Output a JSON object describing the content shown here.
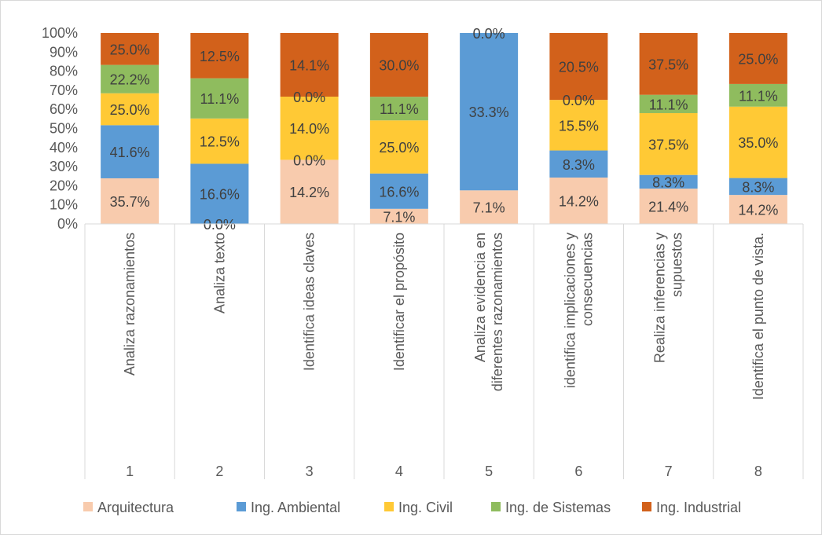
{
  "chart_data": {
    "type": "bar",
    "stacked": "percent",
    "categories": [
      {
        "number": "1",
        "lines": [
          "Analiza razonamientos"
        ]
      },
      {
        "number": "2",
        "lines": [
          "Analiza texto"
        ]
      },
      {
        "number": "3",
        "lines": [
          "Identifica ideas claves"
        ]
      },
      {
        "number": "4",
        "lines": [
          "Identificar el propósito"
        ]
      },
      {
        "number": "5",
        "lines": [
          "Analiza evidencia en",
          "diferentes razonamientos"
        ]
      },
      {
        "number": "6",
        "lines": [
          "identifica implicaciones y",
          "consecuencias"
        ]
      },
      {
        "number": "7",
        "lines": [
          "Realiza inferencias y",
          "supuestos"
        ]
      },
      {
        "number": "8",
        "lines": [
          "Identifica el punto de vista."
        ]
      }
    ],
    "series": [
      {
        "name": "Arquitectura",
        "color": "#f8cbad",
        "values": [
          35.7,
          0.0,
          14.2,
          7.1,
          7.1,
          14.2,
          21.4,
          14.2
        ],
        "labels": [
          "35.7%",
          "0.0%",
          "14.2%",
          "7.1%",
          "7.1%",
          "14.2%",
          "21.4%",
          "14.2%"
        ]
      },
      {
        "name": "Ing. Ambiental",
        "color": "#5b9bd5",
        "values": [
          41.6,
          16.6,
          0.0,
          16.6,
          33.3,
          8.3,
          8.3,
          8.3
        ],
        "labels": [
          "41.6%",
          "16.6%",
          "0.0%",
          "16.6%",
          "33.3%",
          "8.3%",
          "8.3%",
          "8.3%"
        ]
      },
      {
        "name": "Ing. Civil",
        "color": "#ffc935",
        "values": [
          25.0,
          12.5,
          14.0,
          25.0,
          0.0,
          15.5,
          37.5,
          35.0
        ],
        "labels": [
          "25.0%",
          "12.5%",
          "14.0%",
          "25.0%",
          "",
          "15.5%",
          "37.5%",
          "35.0%"
        ]
      },
      {
        "name": "Ing. de Sistemas",
        "color": "#8fbc5e",
        "values": [
          22.2,
          11.1,
          0.0,
          11.1,
          0.0,
          0.0,
          11.1,
          11.1
        ],
        "labels": [
          "22.2%",
          "11.1%",
          "0.0%",
          "11.1%",
          "",
          "0.0%",
          "11.1%",
          "11.1%"
        ]
      },
      {
        "name": "Ing. Industrial",
        "color": "#d2611b",
        "values": [
          25.0,
          12.5,
          14.1,
          30.0,
          0.0,
          20.5,
          37.5,
          25.0
        ],
        "labels": [
          "25.0%",
          "12.5%",
          "14.1%",
          "30.0%",
          "0.0%",
          "20.5%",
          "37.5%",
          "25.0%"
        ]
      }
    ],
    "yaxis": {
      "min": 0,
      "max": 100,
      "step": 10,
      "tick_labels": [
        "0%",
        "10%",
        "20%",
        "30%",
        "40%",
        "50%",
        "60%",
        "70%",
        "80%",
        "90%",
        "100%"
      ]
    },
    "grid": false,
    "legend_position": "bottom",
    "title": "",
    "xlabel": "",
    "ylabel": ""
  }
}
